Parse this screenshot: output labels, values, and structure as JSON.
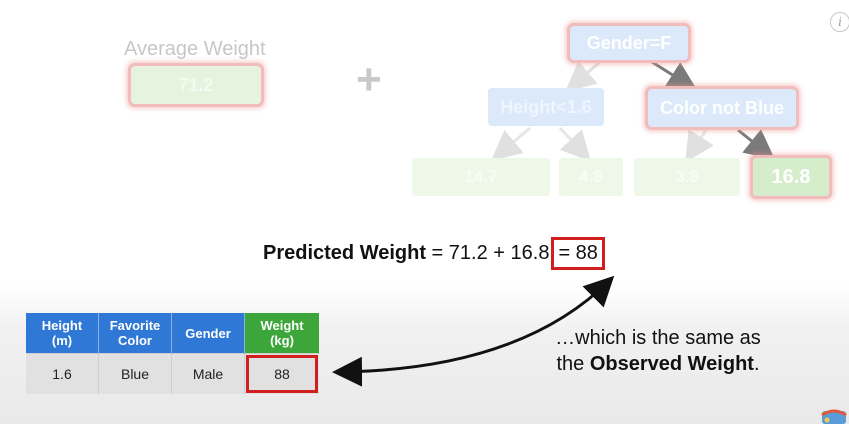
{
  "info_icon": "i",
  "average": {
    "label": "Average Weight",
    "value": "71.2"
  },
  "plus_sign": "+",
  "tree": {
    "root": "Gender=F",
    "left_node": "Height<1.6",
    "right_node": "Color not Blue",
    "leaves": [
      "14.7",
      "4.8",
      "3.8",
      "16.8"
    ]
  },
  "formula": {
    "label": "Predicted Weight",
    "expression": " = 71.2 + 16.8",
    "result": "= 88"
  },
  "table": {
    "headers": [
      {
        "line1": "Height",
        "line2": "(m)"
      },
      {
        "line1": "Favorite",
        "line2": "Color"
      },
      {
        "line1": "Gender",
        "line2": ""
      },
      {
        "line1": "Weight",
        "line2": "(kg)"
      }
    ],
    "row": [
      "1.6",
      "Blue",
      "Male",
      "88"
    ]
  },
  "observed": {
    "line1": "…which is the same as",
    "line2_prefix": "the ",
    "line2_bold": "Observed Weight",
    "line2_suffix": "."
  },
  "colors": {
    "accent_red": "#d11f1f",
    "header_blue": "#2f78d6",
    "header_green": "#3da63a"
  }
}
